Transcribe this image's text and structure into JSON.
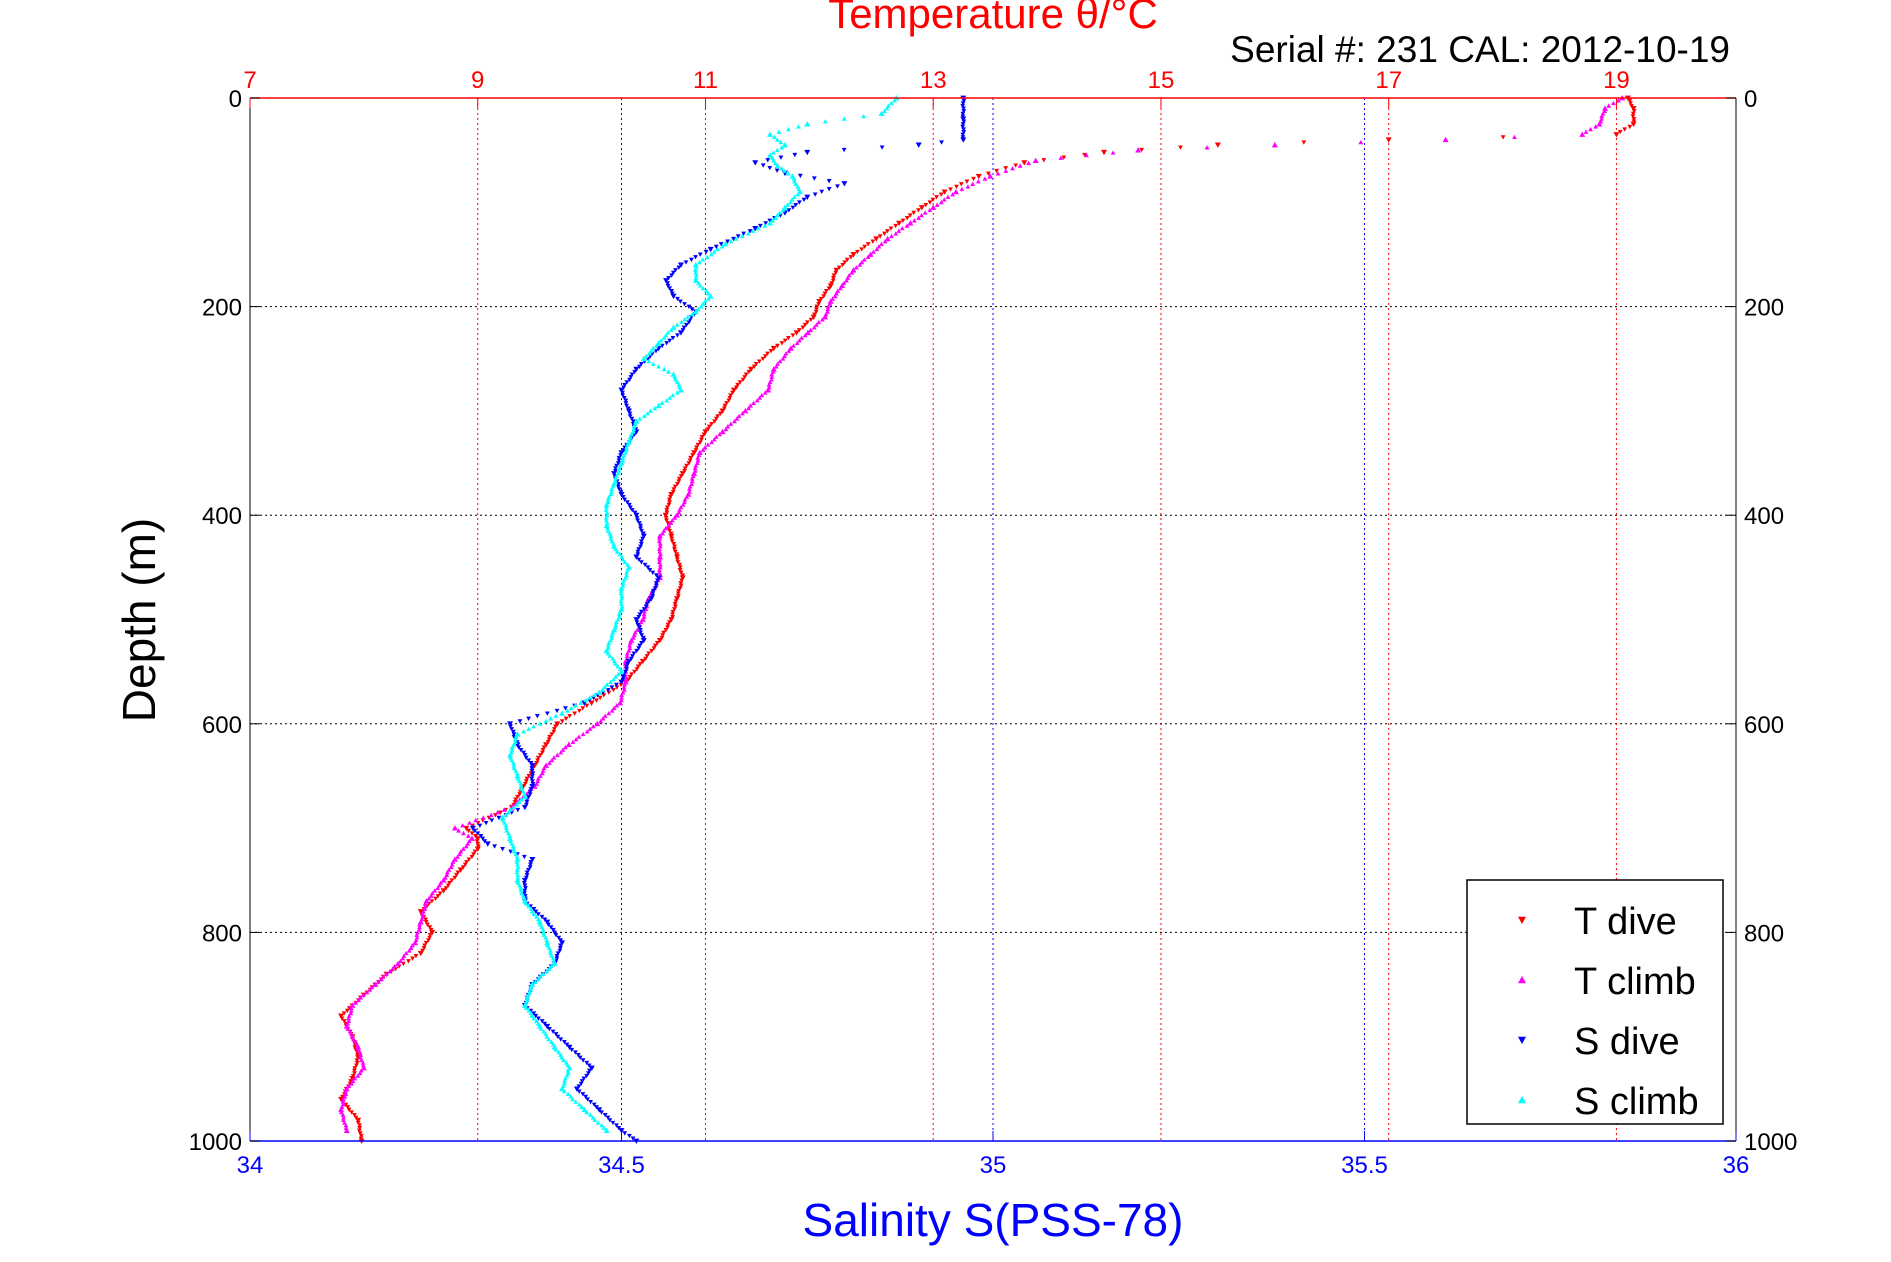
{
  "chart_data": {
    "type": "scatter",
    "title": "Temperature θ/°C",
    "subtitle": "Serial #: 231  CAL: 2012-10-19",
    "ylabel": "Depth (m)",
    "xlabel": "Salinity S(PSS-78)",
    "y_axis": {
      "min": 0,
      "max": 1000,
      "reversed": true,
      "ticks": [
        0,
        200,
        400,
        600,
        800,
        1000
      ]
    },
    "x_bottom": {
      "label": "Salinity S(PSS-78)",
      "min": 34,
      "max": 36,
      "ticks": [
        34,
        34.5,
        35,
        35.5,
        36
      ],
      "color": "#0000ff"
    },
    "x_top": {
      "label": "Temperature θ/°C",
      "min": 7,
      "max": 20.05,
      "ticks": [
        7,
        9,
        11,
        13,
        15,
        17,
        19
      ],
      "color": "#ff0000"
    },
    "grid": true,
    "legend_position": "bottom-right",
    "series": [
      {
        "name": "T dive",
        "axis": "temperature",
        "color": "#ff0000",
        "marker": "triangle-down",
        "points": [
          [
            19.1,
            0
          ],
          [
            19.15,
            10
          ],
          [
            19.15,
            25
          ],
          [
            19.0,
            35
          ],
          [
            17.0,
            40
          ],
          [
            15.5,
            45
          ],
          [
            14.5,
            52
          ],
          [
            13.8,
            62
          ],
          [
            13.4,
            75
          ],
          [
            13.1,
            90
          ],
          [
            12.9,
            105
          ],
          [
            12.7,
            120
          ],
          [
            12.5,
            135
          ],
          [
            12.3,
            150
          ],
          [
            12.15,
            165
          ],
          [
            12.1,
            180
          ],
          [
            12.0,
            195
          ],
          [
            11.95,
            210
          ],
          [
            11.8,
            225
          ],
          [
            11.6,
            240
          ],
          [
            11.4,
            260
          ],
          [
            11.25,
            280
          ],
          [
            11.15,
            300
          ],
          [
            11.0,
            320
          ],
          [
            10.9,
            340
          ],
          [
            10.8,
            360
          ],
          [
            10.7,
            380
          ],
          [
            10.65,
            400
          ],
          [
            10.7,
            420
          ],
          [
            10.75,
            440
          ],
          [
            10.8,
            460
          ],
          [
            10.75,
            480
          ],
          [
            10.7,
            500
          ],
          [
            10.6,
            520
          ],
          [
            10.45,
            540
          ],
          [
            10.3,
            560
          ],
          [
            10.0,
            580
          ],
          [
            9.7,
            600
          ],
          [
            9.6,
            620
          ],
          [
            9.5,
            640
          ],
          [
            9.4,
            660
          ],
          [
            9.3,
            680
          ],
          [
            8.9,
            700
          ],
          [
            9.0,
            710
          ],
          [
            9.0,
            720
          ],
          [
            8.85,
            740
          ],
          [
            8.7,
            760
          ],
          [
            8.5,
            780
          ],
          [
            8.6,
            800
          ],
          [
            8.5,
            820
          ],
          [
            8.2,
            840
          ],
          [
            8.0,
            860
          ],
          [
            7.8,
            880
          ],
          [
            7.9,
            900
          ],
          [
            7.95,
            920
          ],
          [
            7.9,
            940
          ],
          [
            7.8,
            960
          ],
          [
            7.95,
            980
          ],
          [
            7.98,
            1000
          ]
        ]
      },
      {
        "name": "T climb",
        "axis": "temperature",
        "color": "#ff00ff",
        "marker": "triangle-up",
        "points": [
          [
            19.05,
            0
          ],
          [
            18.9,
            10
          ],
          [
            18.85,
            25
          ],
          [
            18.7,
            35
          ],
          [
            17.5,
            40
          ],
          [
            16.0,
            45
          ],
          [
            14.8,
            50
          ],
          [
            13.9,
            60
          ],
          [
            13.5,
            75
          ],
          [
            13.2,
            90
          ],
          [
            13.0,
            105
          ],
          [
            12.8,
            120
          ],
          [
            12.6,
            135
          ],
          [
            12.45,
            150
          ],
          [
            12.3,
            165
          ],
          [
            12.2,
            180
          ],
          [
            12.1,
            195
          ],
          [
            12.05,
            210
          ],
          [
            11.9,
            225
          ],
          [
            11.75,
            240
          ],
          [
            11.6,
            260
          ],
          [
            11.55,
            280
          ],
          [
            11.35,
            300
          ],
          [
            11.15,
            320
          ],
          [
            10.95,
            340
          ],
          [
            10.9,
            360
          ],
          [
            10.85,
            380
          ],
          [
            10.75,
            400
          ],
          [
            10.6,
            420
          ],
          [
            10.6,
            440
          ],
          [
            10.6,
            460
          ],
          [
            10.5,
            480
          ],
          [
            10.45,
            500
          ],
          [
            10.35,
            520
          ],
          [
            10.3,
            540
          ],
          [
            10.3,
            560
          ],
          [
            10.25,
            580
          ],
          [
            10.05,
            600
          ],
          [
            9.8,
            620
          ],
          [
            9.6,
            640
          ],
          [
            9.5,
            660
          ],
          [
            9.3,
            680
          ],
          [
            8.8,
            700
          ],
          [
            8.95,
            710
          ],
          [
            8.8,
            730
          ],
          [
            8.7,
            750
          ],
          [
            8.55,
            770
          ],
          [
            8.5,
            790
          ],
          [
            8.45,
            810
          ],
          [
            8.3,
            830
          ],
          [
            8.1,
            850
          ],
          [
            7.9,
            870
          ],
          [
            7.85,
            890
          ],
          [
            7.95,
            910
          ],
          [
            8.0,
            930
          ],
          [
            7.85,
            950
          ],
          [
            7.8,
            970
          ],
          [
            7.85,
            990
          ]
        ]
      },
      {
        "name": "S dive",
        "axis": "salinity",
        "color": "#0000ff",
        "marker": "triangle-down",
        "points": [
          [
            34.96,
            0
          ],
          [
            34.96,
            20
          ],
          [
            34.96,
            40
          ],
          [
            34.9,
            45
          ],
          [
            34.75,
            52
          ],
          [
            34.68,
            62
          ],
          [
            34.72,
            72
          ],
          [
            34.8,
            82
          ],
          [
            34.75,
            95
          ],
          [
            34.72,
            110
          ],
          [
            34.68,
            125
          ],
          [
            34.62,
            145
          ],
          [
            34.58,
            160
          ],
          [
            34.56,
            175
          ],
          [
            34.57,
            190
          ],
          [
            34.6,
            205
          ],
          [
            34.58,
            225
          ],
          [
            34.55,
            240
          ],
          [
            34.52,
            260
          ],
          [
            34.5,
            280
          ],
          [
            34.51,
            300
          ],
          [
            34.52,
            320
          ],
          [
            34.5,
            340
          ],
          [
            34.49,
            360
          ],
          [
            34.5,
            380
          ],
          [
            34.52,
            400
          ],
          [
            34.53,
            420
          ],
          [
            34.52,
            440
          ],
          [
            34.55,
            460
          ],
          [
            34.54,
            480
          ],
          [
            34.52,
            500
          ],
          [
            34.53,
            520
          ],
          [
            34.51,
            540
          ],
          [
            34.5,
            560
          ],
          [
            34.45,
            580
          ],
          [
            34.35,
            600
          ],
          [
            34.36,
            620
          ],
          [
            34.38,
            640
          ],
          [
            34.38,
            660
          ],
          [
            34.37,
            680
          ],
          [
            34.3,
            700
          ],
          [
            34.32,
            715
          ],
          [
            34.38,
            730
          ],
          [
            34.37,
            750
          ],
          [
            34.37,
            770
          ],
          [
            34.4,
            790
          ],
          [
            34.42,
            810
          ],
          [
            34.41,
            830
          ],
          [
            34.38,
            850
          ],
          [
            34.37,
            870
          ],
          [
            34.4,
            890
          ],
          [
            34.43,
            910
          ],
          [
            34.46,
            930
          ],
          [
            34.44,
            950
          ],
          [
            34.47,
            970
          ],
          [
            34.5,
            990
          ],
          [
            34.52,
            1000
          ]
        ]
      },
      {
        "name": "S climb",
        "axis": "salinity",
        "color": "#00ffff",
        "marker": "triangle-up",
        "points": [
          [
            34.87,
            0
          ],
          [
            34.85,
            15
          ],
          [
            34.75,
            25
          ],
          [
            34.7,
            35
          ],
          [
            34.72,
            45
          ],
          [
            34.7,
            55
          ],
          [
            34.71,
            65
          ],
          [
            34.73,
            75
          ],
          [
            34.74,
            90
          ],
          [
            34.72,
            105
          ],
          [
            34.7,
            120
          ],
          [
            34.64,
            140
          ],
          [
            34.6,
            160
          ],
          [
            34.6,
            175
          ],
          [
            34.62,
            190
          ],
          [
            34.6,
            205
          ],
          [
            34.57,
            220
          ],
          [
            34.55,
            235
          ],
          [
            34.53,
            250
          ],
          [
            34.57,
            265
          ],
          [
            34.58,
            280
          ],
          [
            34.55,
            295
          ],
          [
            34.52,
            310
          ],
          [
            34.51,
            330
          ],
          [
            34.5,
            350
          ],
          [
            34.49,
            370
          ],
          [
            34.48,
            390
          ],
          [
            34.48,
            410
          ],
          [
            34.49,
            430
          ],
          [
            34.51,
            450
          ],
          [
            34.5,
            470
          ],
          [
            34.5,
            490
          ],
          [
            34.49,
            510
          ],
          [
            34.48,
            530
          ],
          [
            34.5,
            550
          ],
          [
            34.47,
            570
          ],
          [
            34.42,
            590
          ],
          [
            34.36,
            610
          ],
          [
            34.35,
            630
          ],
          [
            34.36,
            650
          ],
          [
            34.37,
            670
          ],
          [
            34.34,
            690
          ],
          [
            34.35,
            710
          ],
          [
            34.36,
            730
          ],
          [
            34.36,
            750
          ],
          [
            34.37,
            770
          ],
          [
            34.39,
            790
          ],
          [
            34.4,
            810
          ],
          [
            34.41,
            830
          ],
          [
            34.38,
            850
          ],
          [
            34.37,
            870
          ],
          [
            34.39,
            890
          ],
          [
            34.41,
            910
          ],
          [
            34.43,
            930
          ],
          [
            34.42,
            950
          ],
          [
            34.45,
            970
          ],
          [
            34.48,
            990
          ]
        ]
      }
    ]
  }
}
